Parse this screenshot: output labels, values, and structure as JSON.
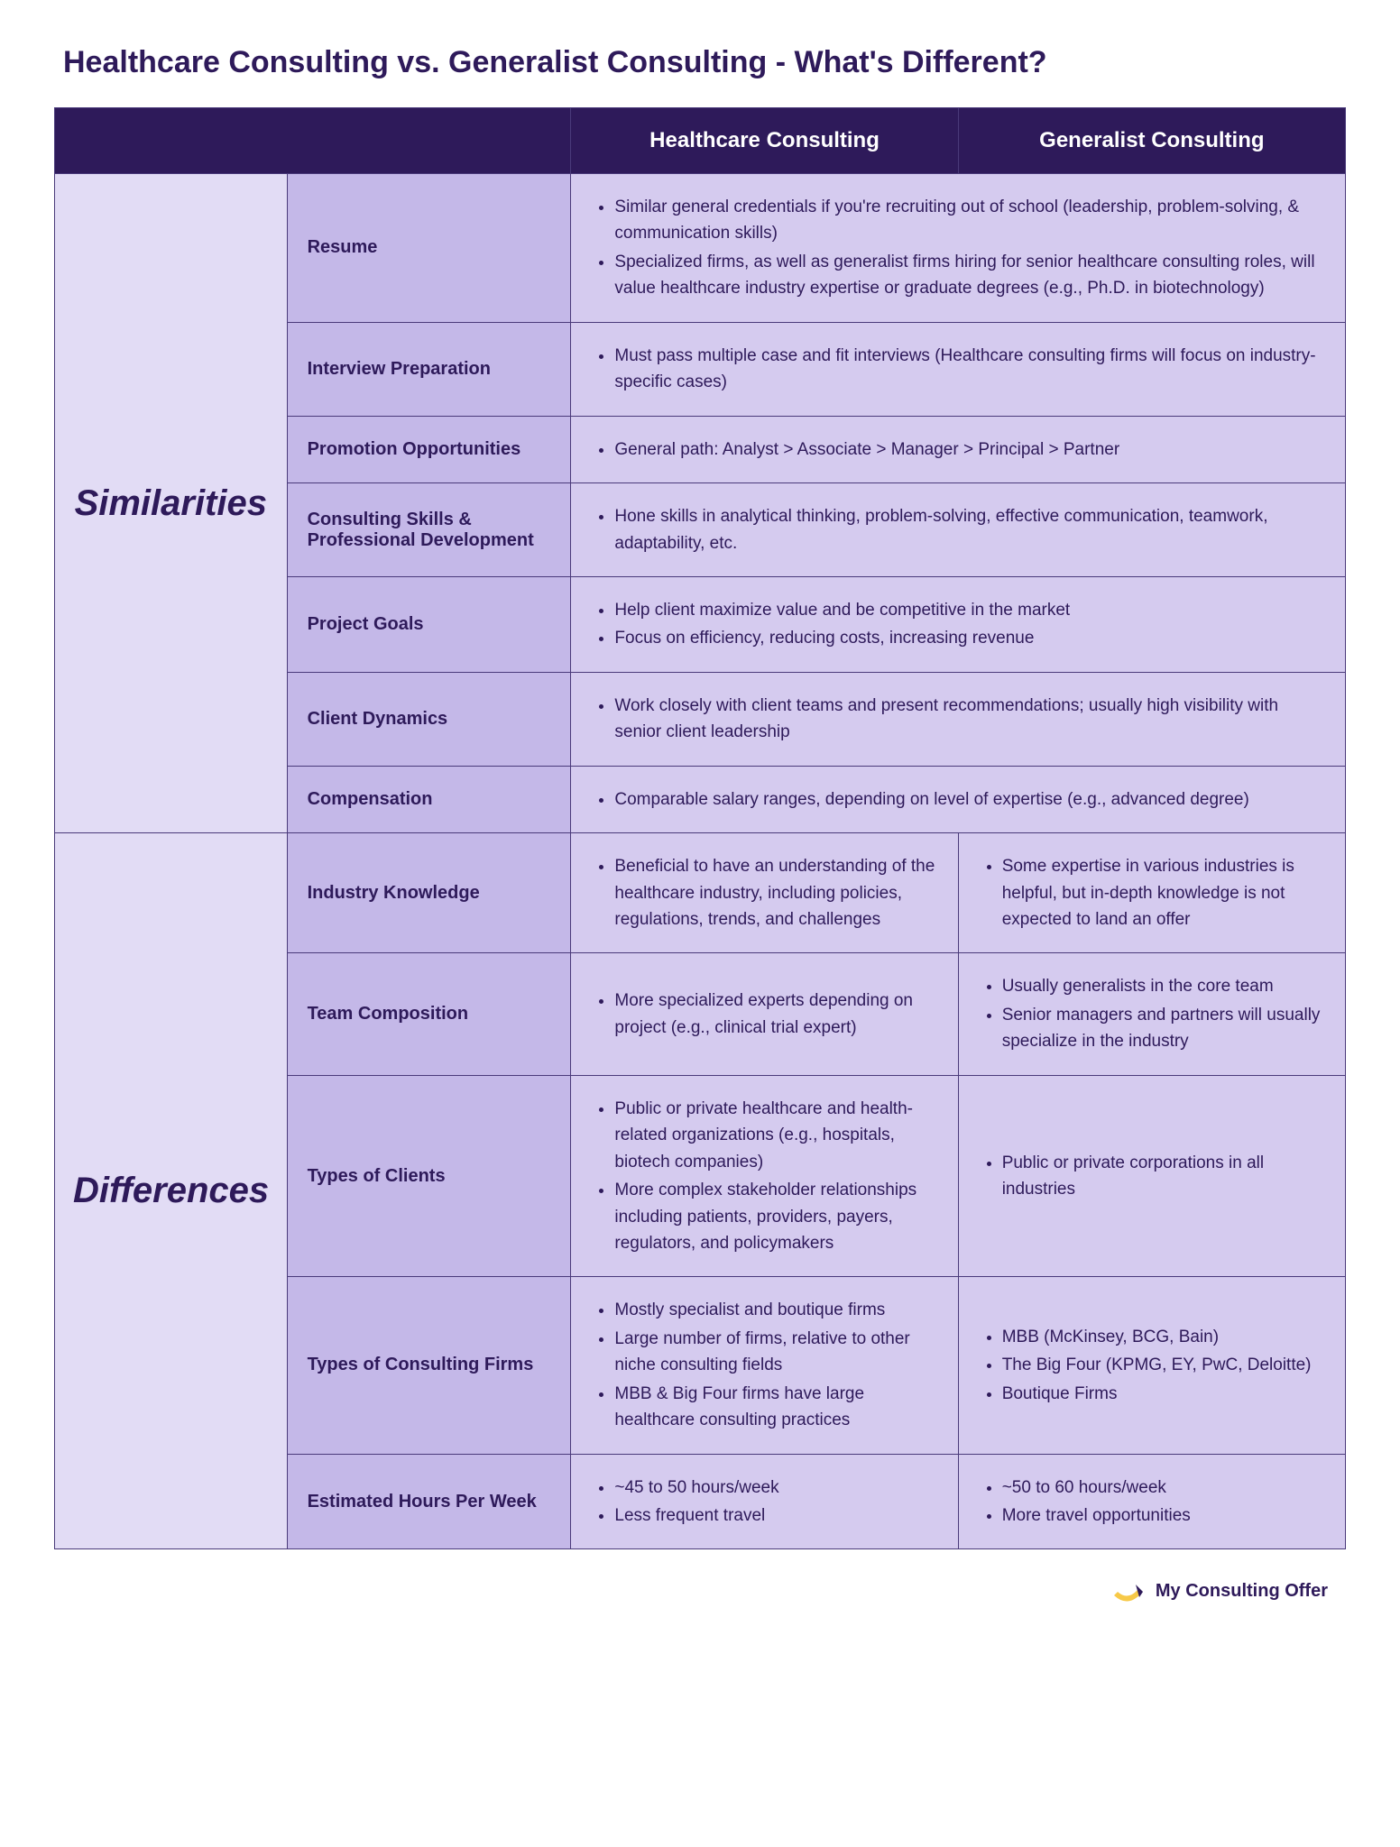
{
  "title": "Healthcare Consulting vs. Generalist Consulting - What's Different?",
  "headers": {
    "col3": "Healthcare Consulting",
    "col4": "Generalist Consulting"
  },
  "sections": {
    "similarities": {
      "label": "Similarities",
      "rows": {
        "resume": {
          "label": "Resume",
          "combined": [
            "Similar general credentials if you're recruiting out of school (leadership, problem-solving, & communication skills)",
            "Specialized firms, as well as generalist firms hiring for senior healthcare consulting roles, will value healthcare industry expertise or graduate degrees (e.g., Ph.D. in biotechnology)"
          ]
        },
        "interview": {
          "label": "Interview Preparation",
          "combined": [
            "Must pass multiple case and fit interviews (Healthcare consulting firms will focus on industry-specific cases)"
          ]
        },
        "promotion": {
          "label": "Promotion Opportunities",
          "combined": [
            "General path: Analyst > Associate > Manager > Principal > Partner"
          ]
        },
        "skills": {
          "label": "Consulting Skills & Professional Development",
          "combined": [
            "Hone skills in analytical thinking, problem-solving, effective communication, teamwork, adaptability, etc."
          ]
        },
        "goals": {
          "label": "Project Goals",
          "combined": [
            "Help client maximize value and be competitive in the market",
            "Focus on efficiency, reducing costs, increasing revenue"
          ]
        },
        "dynamics": {
          "label": "Client Dynamics",
          "combined": [
            "Work closely with client teams and present recommendations; usually high visibility with senior client leadership"
          ]
        },
        "compensation": {
          "label": "Compensation",
          "combined": [
            "Comparable salary ranges, depending on level of expertise (e.g., advanced degree)"
          ]
        }
      }
    },
    "differences": {
      "label": "Differences",
      "rows": {
        "knowledge": {
          "label": "Industry Knowledge",
          "healthcare": [
            "Beneficial to have an understanding of the healthcare industry, including policies, regulations, trends, and challenges"
          ],
          "generalist": [
            "Some expertise in various industries is helpful, but in-depth knowledge is not expected to land an offer"
          ]
        },
        "team": {
          "label": "Team Composition",
          "healthcare": [
            "More specialized experts depending on project (e.g., clinical trial expert)"
          ],
          "generalist": [
            "Usually generalists in the core team",
            "Senior managers and partners will usually specialize in the industry"
          ]
        },
        "clients": {
          "label": "Types of Clients",
          "healthcare": [
            "Public or private healthcare and health-related organizations (e.g., hospitals, biotech companies)",
            "More complex stakeholder relationships including patients, providers, payers, regulators, and policymakers"
          ],
          "generalist": [
            "Public or private corporations in all industries"
          ]
        },
        "firms": {
          "label": "Types of Consulting Firms",
          "healthcare": [
            "Mostly specialist and boutique firms",
            "Large number of firms, relative to other niche consulting fields",
            "MBB & Big Four firms have large healthcare consulting practices"
          ],
          "generalist": [
            "MBB (McKinsey, BCG, Bain)",
            "The Big Four (KPMG, EY, PwC, Deloitte)",
            "Boutique Firms"
          ]
        },
        "hours": {
          "label": "Estimated Hours Per Week",
          "healthcare": [
            "~45 to 50 hours/week",
            "Less frequent travel"
          ],
          "generalist": [
            "~50 to 60 hours/week",
            "More travel opportunities"
          ]
        }
      }
    }
  },
  "footer": {
    "text": "My Consulting Offer",
    "logo_color_primary": "#f7c948",
    "logo_color_accent": "#2e1a5a"
  },
  "colors": {
    "header_bg": "#2e1a5a",
    "section_bg": "#e2dcf5",
    "label_bg": "#c4b8e8",
    "content_bg": "#d5cbef",
    "text": "#2e1a5a",
    "border": "#4a3a7a"
  }
}
